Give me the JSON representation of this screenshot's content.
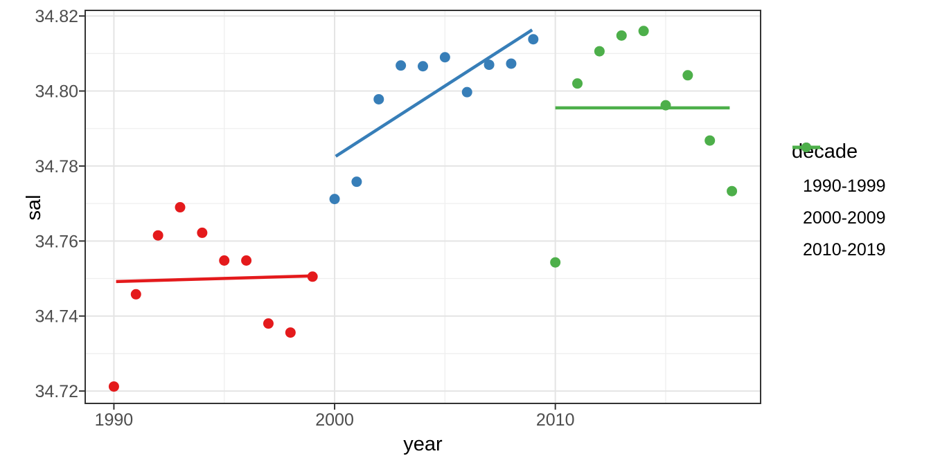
{
  "chart_data": {
    "type": "scatter",
    "title": "",
    "xlabel": "year",
    "ylabel": "sal",
    "legend_title": "decade",
    "legend_position": "right",
    "grid": true,
    "x_domain": [
      1988.7,
      2019.3
    ],
    "y_domain": [
      34.7167,
      34.8215
    ],
    "x_ticks": [
      1990,
      2000,
      2010
    ],
    "x_minor_ticks": [
      1995,
      2005,
      2015
    ],
    "y_ticks": [
      34.72,
      34.74,
      34.76,
      34.78,
      34.8,
      34.82
    ],
    "y_minor_ticks": [
      34.73,
      34.75,
      34.77,
      34.79,
      34.81
    ],
    "colors": {
      "tick_label": "#4d4d4d",
      "axis_title": "#000000",
      "panel_border": "#333333",
      "grid_major": "#e4e4e4",
      "grid_minor": "#efefef",
      "background": "#ffffff"
    },
    "series": [
      {
        "name": "1990-1999",
        "color": "#e41a1c",
        "x": [
          1990,
          1991,
          1992,
          1993,
          1994,
          1995,
          1996,
          1997,
          1998,
          1999
        ],
        "y": [
          34.7212,
          34.7458,
          34.7615,
          34.769,
          34.7622,
          34.7548,
          34.7548,
          34.738,
          34.7356,
          34.7505
        ],
        "trend": {
          "x": [
            1990.1,
            1999.0
          ],
          "y": [
            34.7492,
            34.7507
          ]
        }
      },
      {
        "name": "2000-2009",
        "color": "#377eb8",
        "x": [
          2000,
          2001,
          2002,
          2003,
          2004,
          2005,
          2006,
          2007,
          2008,
          2009
        ],
        "y": [
          34.7712,
          34.7758,
          34.7978,
          34.8068,
          34.8066,
          34.809,
          34.7997,
          34.807,
          34.8073,
          34.8138
        ],
        "trend": {
          "x": [
            2000.05,
            2008.95
          ],
          "y": [
            34.7826,
            34.8163
          ]
        }
      },
      {
        "name": "2010-2019",
        "color": "#4daf4a",
        "x": [
          2010,
          2011,
          2012,
          2013,
          2014,
          2015,
          2016,
          2017,
          2018
        ],
        "y": [
          34.7543,
          34.802,
          34.8106,
          34.8148,
          34.816,
          34.7962,
          34.8042,
          34.7868,
          34.7733
        ],
        "trend": {
          "x": [
            2010.0,
            2017.9
          ],
          "y": [
            34.7955,
            34.7955
          ]
        }
      }
    ]
  }
}
